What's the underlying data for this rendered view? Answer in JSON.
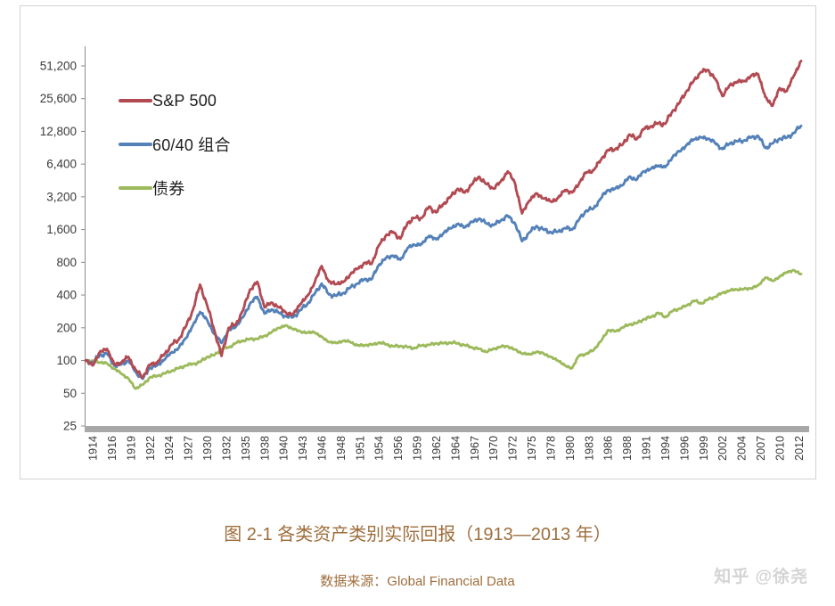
{
  "caption": "图 2-1 各类资产类别实际回报（1913—2013 年）",
  "source_label": "数据来源：Global Financial Data",
  "watermark": "知乎 @徐尧",
  "colors": {
    "sp500": "#b24a52",
    "portfolio6040": "#5381b8",
    "bonds": "#9cba5c",
    "axis": "#8c8c8c",
    "axis_bar": "#a8a8a8",
    "tick_text": "#3a3a3a",
    "caption_text": "#9e6e3c",
    "watermark_text": "#d4d4d4"
  },
  "chart_data": {
    "type": "line",
    "title": "图 2-1 各类资产类别实际回报（1913—2013 年）",
    "xlabel": "",
    "ylabel": "",
    "grid": false,
    "legend_position": "top-left-inside",
    "y_scale": "log2",
    "ylim": [
      25,
      51200
    ],
    "x_start": 1913,
    "x_end": 2013,
    "y_ticks": [
      25,
      50,
      100,
      200,
      400,
      800,
      1600,
      3200,
      6400,
      12800,
      25600,
      51200
    ],
    "y_tick_labels": [
      "25",
      "50",
      "100",
      "200",
      "400",
      "800",
      "1,600",
      "3,200",
      "6,400",
      "12,800",
      "25,600",
      "51,200"
    ],
    "x_tick_interval_months": 32,
    "x_tick_first_year": 1914,
    "x_tick_labels": [
      "1914",
      "1916",
      "1919",
      "1922",
      "1924",
      "1927",
      "1930",
      "1932",
      "1935",
      "1938",
      "1940",
      "1943",
      "1946",
      "1948",
      "1951",
      "1954",
      "1956",
      "1959",
      "1962",
      "1964",
      "1967",
      "1970",
      "1972",
      "1975",
      "1978",
      "1980",
      "1983",
      "1986",
      "1988",
      "1991",
      "1994",
      "1996",
      "1999",
      "2002",
      "2004",
      "2007",
      "2010",
      "2012"
    ],
    "series": [
      {
        "name": "S&P 500",
        "color": "#b24a52",
        "values": [
          100,
          90,
          120,
          128,
          92,
          96,
          108,
          82,
          70,
          92,
          96,
          114,
          140,
          155,
          205,
          290,
          500,
          320,
          190,
          110,
          200,
          215,
          290,
          450,
          530,
          310,
          340,
          310,
          275,
          265,
          330,
          390,
          520,
          740,
          530,
          505,
          525,
          620,
          700,
          790,
          780,
          1150,
          1420,
          1520,
          1320,
          1850,
          2050,
          2050,
          2600,
          2300,
          2750,
          3200,
          3800,
          3500,
          4200,
          4900,
          4200,
          3800,
          4400,
          5500,
          4300,
          2250,
          2950,
          3450,
          3100,
          2900,
          3100,
          3700,
          3500,
          4300,
          5400,
          5600,
          7000,
          8600,
          8800,
          9600,
          12000,
          10800,
          13500,
          14200,
          15200,
          15000,
          19500,
          23500,
          30000,
          37500,
          45000,
          47000,
          39000,
          27000,
          34000,
          36500,
          37000,
          41500,
          43000,
          26500,
          22000,
          32000,
          30000,
          42000,
          57000
        ]
      },
      {
        "name": "60/40 组合",
        "color": "#5381b8",
        "values": [
          100,
          95,
          112,
          116,
          90,
          92,
          100,
          78,
          68,
          86,
          90,
          102,
          118,
          130,
          160,
          210,
          280,
          235,
          175,
          145,
          190,
          205,
          250,
          335,
          385,
          270,
          295,
          275,
          255,
          250,
          290,
          330,
          410,
          510,
          405,
          395,
          415,
          470,
          510,
          560,
          560,
          760,
          880,
          920,
          845,
          1080,
          1160,
          1180,
          1400,
          1300,
          1480,
          1650,
          1800,
          1680,
          1880,
          2020,
          1820,
          1760,
          1930,
          2150,
          1830,
          1250,
          1500,
          1720,
          1600,
          1510,
          1530,
          1650,
          1600,
          2000,
          2400,
          2500,
          3100,
          3700,
          3800,
          4100,
          4900,
          4600,
          5500,
          5800,
          6200,
          6000,
          7400,
          8400,
          9600,
          10800,
          11300,
          11000,
          10000,
          8800,
          9900,
          10400,
          10500,
          11300,
          11600,
          9000,
          9900,
          11000,
          11200,
          12400,
          14400
        ]
      },
      {
        "name": "债券",
        "color": "#9cba5c",
        "values": [
          100,
          99,
          96,
          94,
          84,
          76,
          68,
          55,
          60,
          70,
          72,
          76,
          80,
          85,
          90,
          93,
          97,
          108,
          112,
          128,
          132,
          145,
          152,
          158,
          158,
          168,
          182,
          200,
          210,
          195,
          185,
          180,
          182,
          165,
          148,
          145,
          152,
          148,
          138,
          138,
          140,
          146,
          141,
          135,
          136,
          133,
          130,
          138,
          139,
          144,
          144,
          146,
          144,
          138,
          132,
          128,
          120,
          128,
          134,
          135,
          126,
          116,
          114,
          120,
          116,
          108,
          100,
          90,
          85,
          112,
          115,
          125,
          150,
          190,
          185,
          200,
          215,
          220,
          240,
          250,
          275,
          250,
          285,
          300,
          320,
          355,
          335,
          365,
          385,
          420,
          440,
          450,
          455,
          460,
          490,
          580,
          540,
          590,
          650,
          675,
          625
        ]
      }
    ]
  }
}
